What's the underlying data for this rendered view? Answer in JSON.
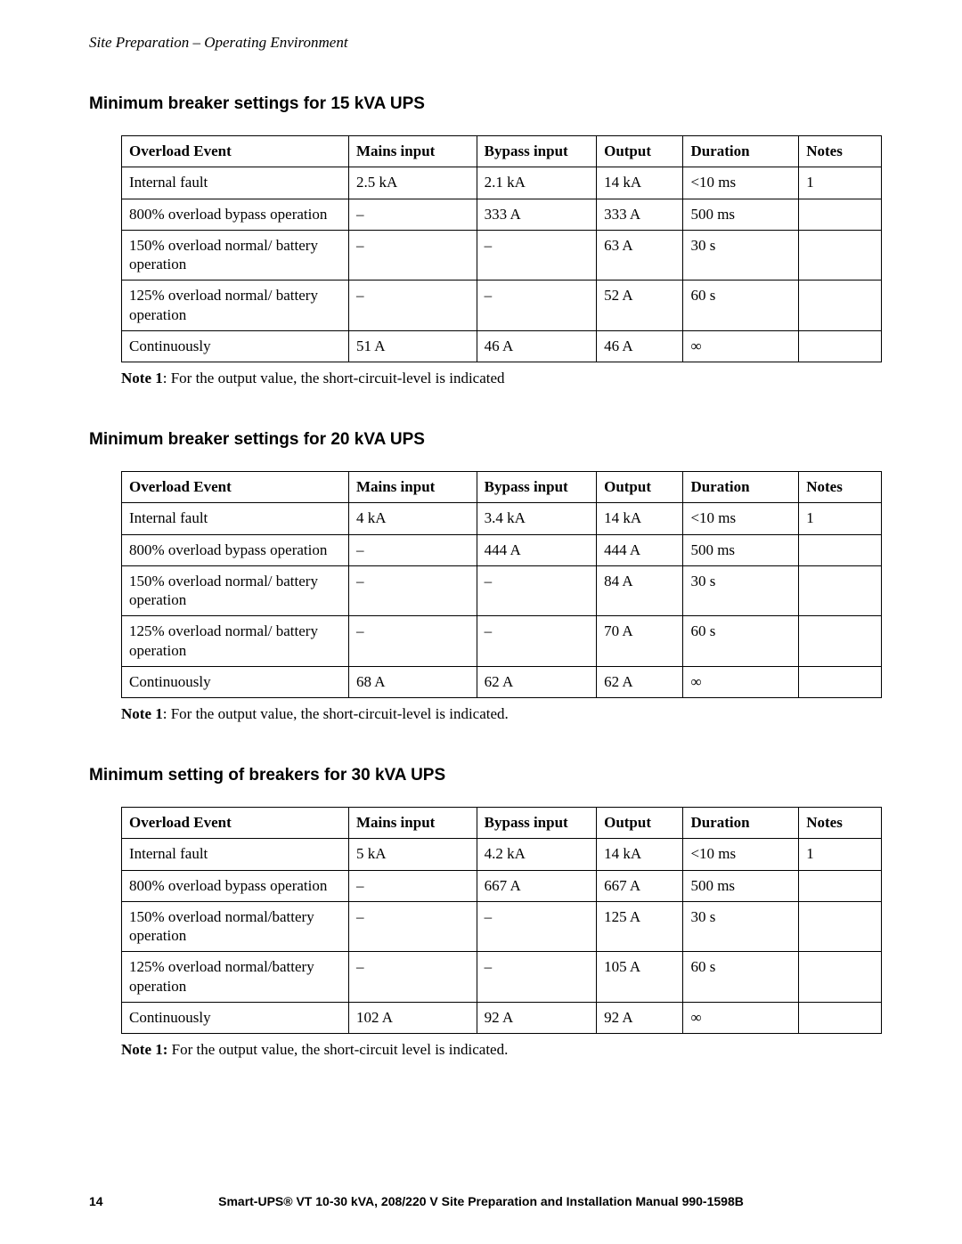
{
  "header": "Site Preparation – Operating Environment",
  "columns": [
    "Overload Event",
    "Mains input",
    "Bypass input",
    "Output",
    "Duration",
    "Notes"
  ],
  "sections": [
    {
      "title": "Minimum breaker settings for 15 kVA UPS",
      "rows": [
        [
          "Internal fault",
          "2.5 kA",
          "2.1 kA",
          "14 kA",
          "<10 ms",
          "1"
        ],
        [
          "800% overload bypass operation",
          "–",
          "333 A",
          "333 A",
          "500 ms",
          ""
        ],
        [
          "150% overload normal/ battery operation",
          "–",
          "–",
          "63 A",
          "30 s",
          ""
        ],
        [
          "125% overload normal/ battery operation",
          "–",
          "–",
          "52 A",
          "60 s",
          ""
        ],
        [
          "Continuously",
          "51 A",
          "46 A",
          "46 A",
          "∞",
          ""
        ]
      ],
      "note_label": "Note 1",
      "note_text": ":  For the output value, the short-circuit-level is indicated"
    },
    {
      "title": "Minimum breaker settings for 20 kVA UPS",
      "rows": [
        [
          "Internal fault",
          "4 kA",
          "3.4 kA",
          "14 kA",
          "<10 ms",
          "1"
        ],
        [
          "800% overload bypass operation",
          "–",
          "444 A",
          "444 A",
          "500 ms",
          ""
        ],
        [
          "150% overload normal/ battery operation",
          "–",
          "–",
          "84 A",
          "30 s",
          ""
        ],
        [
          "125% overload normal/ battery operation",
          "–",
          "–",
          "70 A",
          "60 s",
          ""
        ],
        [
          "Continuously",
          "68 A",
          "62 A",
          "62 A",
          "∞",
          ""
        ]
      ],
      "note_label": "Note 1",
      "note_text": ":  For the output value, the short-circuit-level is indicated."
    },
    {
      "title": "Minimum setting of breakers for 30 kVA UPS",
      "rows": [
        [
          "Internal fault",
          "5 kA",
          "4.2 kA",
          "14 kA",
          "<10 ms",
          "1"
        ],
        [
          "800% overload bypass operation",
          "–",
          "667 A",
          "667 A",
          "500 ms",
          ""
        ],
        [
          "150% overload normal/battery operation",
          "–",
          "–",
          "125 A",
          "30 s",
          ""
        ],
        [
          "125% overload normal/battery operation",
          "–",
          "–",
          "105 A",
          "60 s",
          ""
        ],
        [
          "Continuously",
          "102 A",
          "92 A",
          "92 A",
          "∞",
          ""
        ]
      ],
      "note_label": "Note 1:",
      "note_text": "  For the output value, the short-circuit level is indicated."
    }
  ],
  "footer": {
    "page": "14",
    "text": "Smart-UPS® VT 10-30 kVA, 208/220 V Site Preparation and Installation Manual     990-1598B"
  }
}
